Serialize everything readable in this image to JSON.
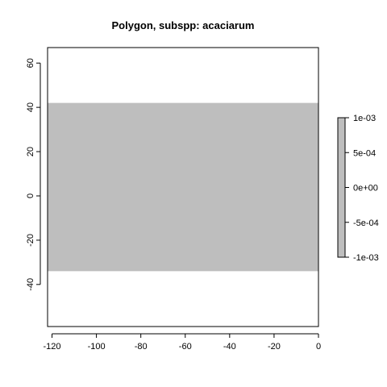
{
  "chart_data": {
    "type": "heatmap",
    "title": "Polygon, subspp: acaciarum",
    "xlabel": "",
    "ylabel": "",
    "xlim": [
      -122,
      0
    ],
    "ylim": [
      -59,
      67
    ],
    "x_ticks": [
      -120,
      -100,
      -80,
      -60,
      -40,
      -20,
      0
    ],
    "x_tick_labels": [
      "-120",
      "-100",
      "-80",
      "-60",
      "-40",
      "-20",
      "0"
    ],
    "y_ticks": [
      -40,
      -20,
      0,
      20,
      40,
      60
    ],
    "y_tick_labels": [
      "-40",
      "-20",
      "0",
      "20",
      "40",
      "60"
    ],
    "raster": {
      "xmin": -122,
      "xmax": 0,
      "ymin": -34,
      "ymax": 42,
      "value": 0,
      "color": "#bebebe"
    },
    "legend": {
      "placement": "right",
      "range": [
        -0.001,
        0.001
      ],
      "ticks": [
        0.001,
        0.0005,
        0,
        -0.0005,
        -0.001
      ],
      "tick_labels": [
        "1e-03",
        "5e-04",
        "0e+00",
        "-5e-04",
        "-1e-03"
      ],
      "color": "#bebebe"
    },
    "grid": false
  }
}
